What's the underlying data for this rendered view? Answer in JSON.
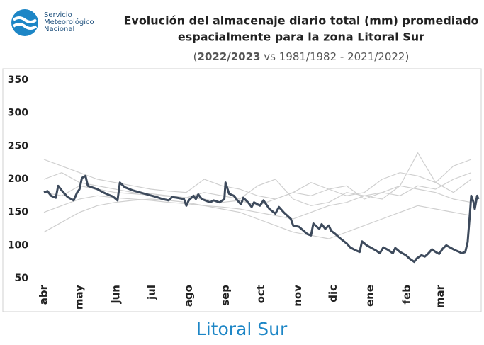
{
  "logo_text": [
    "Servicio",
    "Meteorológico",
    "Nacional"
  ],
  "footer": "Litoral Sur",
  "chart_data": {
    "type": "line",
    "title": [
      "Evolución del almacenaje diario total (mm) promediado",
      "espacialmente para la zona Litoral Sur"
    ],
    "subtitle": [
      "(",
      "2022/2023",
      " vs 1981/1982 - 2021/2022)"
    ],
    "xlim": [
      0,
      366
    ],
    "xticks": [
      {
        "value": 0,
        "label": "abr"
      },
      {
        "value": 30,
        "label": "may"
      },
      {
        "value": 61,
        "label": "jun"
      },
      {
        "value": 91,
        "label": "jul"
      },
      {
        "value": 122,
        "label": "ago"
      },
      {
        "value": 153,
        "label": "sep"
      },
      {
        "value": 183,
        "label": "oct"
      },
      {
        "value": 214,
        "label": "nov"
      },
      {
        "value": 244,
        "label": "dic"
      },
      {
        "value": 275,
        "label": "ene"
      },
      {
        "value": 306,
        "label": "feb"
      },
      {
        "value": 334,
        "label": "mar"
      }
    ],
    "ylim": [
      50,
      350
    ],
    "yticks": [
      50,
      100,
      150,
      200,
      250,
      300,
      350
    ],
    "grid": false,
    "series": [
      {
        "color": "#cfcfcf",
        "x": [
          0,
          15,
          30,
          45,
          60,
          75,
          90,
          105,
          120,
          135,
          150,
          165,
          180,
          195,
          210,
          225,
          240,
          255,
          270,
          285,
          300,
          315,
          330,
          345,
          360
        ],
        "values": [
          200,
          210,
          195,
          190,
          185,
          180,
          178,
          175,
          172,
          170,
          165,
          168,
          160,
          170,
          180,
          175,
          185,
          190,
          170,
          180,
          175,
          190,
          185,
          200,
          210
        ]
      },
      {
        "color": "#cfcfcf",
        "x": [
          0,
          15,
          30,
          45,
          60,
          75,
          90,
          105,
          120,
          135,
          150,
          165,
          180,
          195,
          210,
          225,
          240,
          255,
          270,
          285,
          300,
          315,
          330,
          345,
          360
        ],
        "values": [
          150,
          160,
          170,
          175,
          172,
          170,
          168,
          165,
          163,
          160,
          158,
          155,
          150,
          145,
          140,
          150,
          160,
          165,
          175,
          180,
          190,
          185,
          180,
          170,
          165
        ]
      },
      {
        "color": "#cfcfcf",
        "x": [
          0,
          15,
          30,
          45,
          60,
          75,
          90,
          105,
          120,
          135,
          150,
          165,
          180,
          195,
          210,
          225,
          240,
          255,
          270,
          285,
          300,
          315,
          330,
          345,
          360
        ],
        "values": [
          230,
          220,
          210,
          200,
          195,
          190,
          185,
          182,
          180,
          200,
          190,
          185,
          175,
          170,
          180,
          195,
          185,
          175,
          180,
          200,
          210,
          205,
          195,
          220,
          230
        ]
      },
      {
        "color": "#cfcfcf",
        "x": [
          0,
          15,
          30,
          45,
          60,
          75,
          90,
          105,
          120,
          135,
          150,
          165,
          180,
          195,
          210,
          225,
          240,
          255,
          270,
          285,
          300,
          315,
          330,
          345,
          360
        ],
        "values": [
          120,
          135,
          150,
          160,
          165,
          168,
          170,
          168,
          165,
          160,
          155,
          150,
          140,
          130,
          120,
          115,
          110,
          120,
          130,
          140,
          150,
          160,
          155,
          150,
          145
        ]
      },
      {
        "color": "#cfcfcf",
        "x": [
          0,
          15,
          30,
          45,
          60,
          75,
          90,
          105,
          120,
          135,
          150,
          165,
          180,
          195,
          210,
          225,
          240,
          255,
          270,
          285,
          300,
          315,
          330,
          345,
          360
        ],
        "values": [
          180,
          175,
          190,
          185,
          180,
          178,
          176,
          174,
          172,
          180,
          175,
          170,
          190,
          200,
          170,
          160,
          165,
          180,
          175,
          170,
          190,
          240,
          195,
          180,
          200
        ]
      },
      {
        "color": "#3d4a5c",
        "x": [
          0,
          3,
          6,
          10,
          12,
          15,
          20,
          25,
          28,
          30,
          32,
          35,
          37,
          40,
          45,
          50,
          55,
          58,
          62,
          64,
          68,
          75,
          85,
          95,
          100,
          105,
          108,
          112,
          118,
          120,
          122,
          126,
          128,
          130,
          133,
          140,
          143,
          148,
          152,
          153,
          156,
          160,
          163,
          166,
          168,
          172,
          175,
          177,
          182,
          185,
          190,
          195,
          198,
          202,
          208,
          210,
          215,
          220,
          222,
          225,
          227,
          230,
          232,
          234,
          237,
          240,
          242,
          245,
          250,
          255,
          258,
          262,
          266,
          268,
          272,
          276,
          280,
          283,
          286,
          290,
          294,
          296,
          300,
          305,
          308,
          312,
          314,
          318,
          321,
          324,
          327,
          330,
          333,
          336,
          339,
          342,
          346,
          350,
          352,
          355,
          357,
          359,
          360,
          362,
          363,
          365,
          366
        ],
        "values": [
          180,
          182,
          175,
          172,
          190,
          183,
          173,
          168,
          180,
          185,
          202,
          205,
          190,
          188,
          185,
          180,
          176,
          174,
          168,
          195,
          188,
          183,
          178,
          173,
          170,
          168,
          173,
          172,
          170,
          160,
          168,
          175,
          170,
          177,
          170,
          165,
          168,
          165,
          170,
          195,
          178,
          175,
          168,
          162,
          172,
          165,
          158,
          165,
          160,
          168,
          155,
          148,
          158,
          150,
          140,
          130,
          128,
          120,
          117,
          115,
          133,
          128,
          125,
          132,
          125,
          130,
          122,
          118,
          110,
          103,
          97,
          93,
          90,
          106,
          100,
          96,
          92,
          88,
          97,
          93,
          88,
          96,
          90,
          85,
          80,
          75,
          80,
          85,
          83,
          88,
          94,
          90,
          87,
          95,
          100,
          97,
          93,
          90,
          88,
          90,
          105,
          150,
          175,
          165,
          155,
          175,
          170
        ]
      }
    ]
  }
}
